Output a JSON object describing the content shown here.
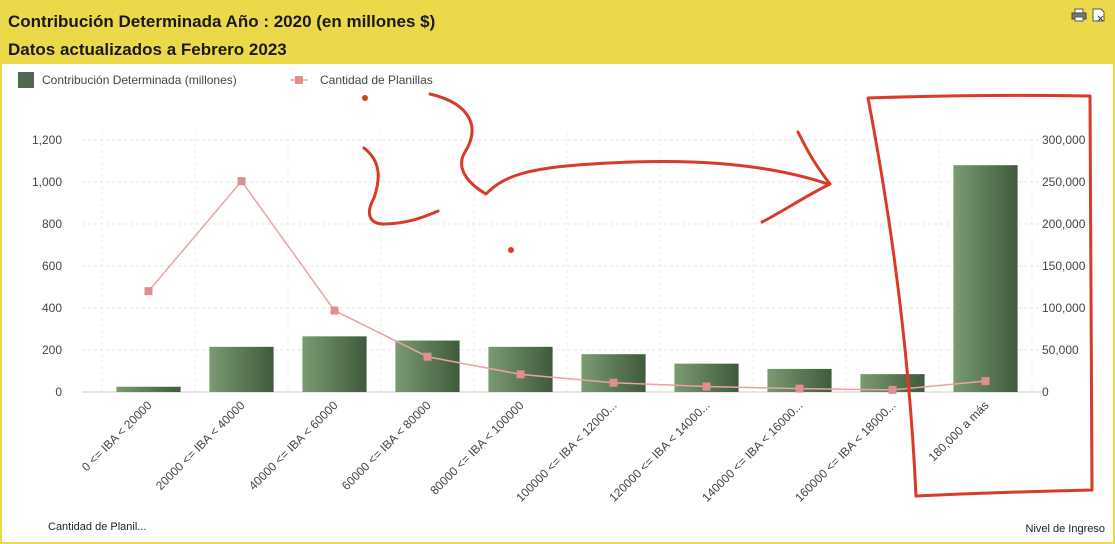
{
  "header": {
    "title": "Contribución Determinada Año : 2020 (en millones $)",
    "subtitle": "Datos actualizados a Febrero 2023",
    "icons": [
      "printer-icon",
      "export-icon"
    ]
  },
  "footer": {
    "left_label": "Cantidad de Planil...",
    "right_label": "Nivel de Ingreso"
  },
  "colors": {
    "header_bg": "#ecd94a",
    "bar_dark": "#3f5a3c",
    "bar_light": "#7b9a72",
    "line": "#e8a3a3",
    "marker": "#e08f8f",
    "annotation": "#d93b26"
  },
  "chart_data": {
    "type": "bar",
    "categories": [
      "0 <= IBA < 20000",
      "20000 <= IBA < 40000",
      "40000 <= IBA < 60000",
      "60000 <= IBA < 80000",
      "80000 <= IBA < 100000",
      "100000 <= IBA < 12000...",
      "120000 <= IBA < 14000...",
      "140000 <= IBA < 16000...",
      "160000 <= IBA < 18000...",
      "180,000 a más"
    ],
    "series": [
      {
        "name": "Contribución Determinada (millones)",
        "type": "bar",
        "axis": "left",
        "values": [
          25,
          215,
          265,
          245,
          215,
          180,
          135,
          110,
          85,
          1080
        ]
      },
      {
        "name": "Cantidad de Planillas",
        "type": "line",
        "axis": "right",
        "values": [
          120000,
          251000,
          97000,
          42000,
          21000,
          11000,
          6500,
          4000,
          2500,
          13000
        ]
      }
    ],
    "y_left": {
      "ylim": [
        0,
        1200
      ],
      "ticks": [
        0,
        200,
        400,
        600,
        800,
        1000,
        1200
      ],
      "tick_labels": [
        "0",
        "200",
        "400",
        "600",
        "800",
        "1,000",
        "1,200"
      ]
    },
    "y_right": {
      "ylim": [
        0,
        300000
      ],
      "ticks": [
        0,
        50000,
        100000,
        150000,
        200000,
        250000,
        300000
      ],
      "tick_labels": [
        "0",
        "50,000",
        "100,000",
        "150,000",
        "200,000",
        "250,000",
        "300,000"
      ]
    },
    "xlabel": "Nivel de Ingreso",
    "legend_position": "top-left",
    "grid": true
  }
}
